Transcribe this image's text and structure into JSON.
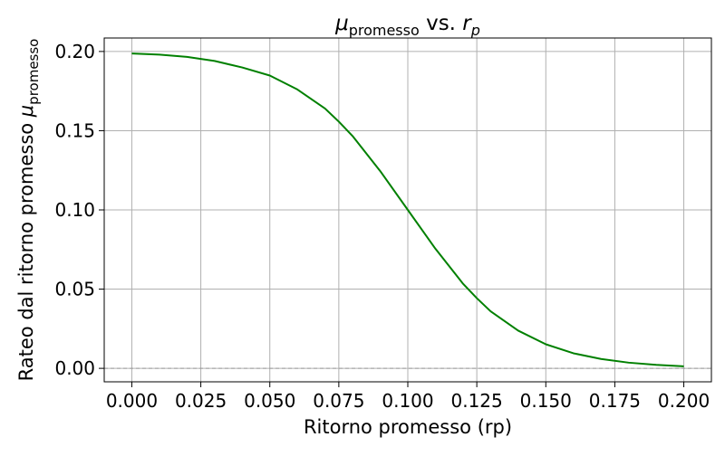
{
  "chart_data": {
    "type": "line",
    "title": {
      "main": "μ",
      "sub": "promesso",
      "mid": " vs. ",
      "main2": "r",
      "sub2": "p"
    },
    "xlabel": "Ritorno promesso (rp)",
    "ylabel": {
      "text": "Rateo dal ritorno promesso ",
      "symbol": "μ",
      "sub": "promesso"
    },
    "xlim": [
      -0.01,
      0.21
    ],
    "ylim": [
      -0.0085,
      0.2085
    ],
    "x_ticks": [
      0.0,
      0.025,
      0.05,
      0.075,
      0.1,
      0.125,
      0.15,
      0.175,
      0.2
    ],
    "x_tick_labels": [
      "0.000",
      "0.025",
      "0.050",
      "0.075",
      "0.100",
      "0.125",
      "0.150",
      "0.175",
      "0.200"
    ],
    "y_ticks": [
      0.0,
      0.05,
      0.1,
      0.15,
      0.2
    ],
    "y_tick_labels": [
      "0.00",
      "0.05",
      "0.10",
      "0.15",
      "0.20"
    ],
    "grid": true,
    "reference_line": {
      "y": 0.0,
      "style": "dashed",
      "color": "#999999"
    },
    "series": [
      {
        "color": "#008000",
        "x": [
          0.0,
          0.01,
          0.02,
          0.03,
          0.04,
          0.05,
          0.06,
          0.07,
          0.075,
          0.08,
          0.09,
          0.1,
          0.11,
          0.12,
          0.125,
          0.13,
          0.14,
          0.15,
          0.16,
          0.17,
          0.18,
          0.19,
          0.2
        ],
        "y": [
          0.1987,
          0.198,
          0.1966,
          0.194,
          0.1899,
          0.1848,
          0.176,
          0.164,
          0.1557,
          0.1466,
          0.1245,
          0.1,
          0.0755,
          0.0534,
          0.0443,
          0.036,
          0.0238,
          0.0152,
          0.0095,
          0.0059,
          0.0036,
          0.0022,
          0.0013
        ]
      }
    ]
  }
}
